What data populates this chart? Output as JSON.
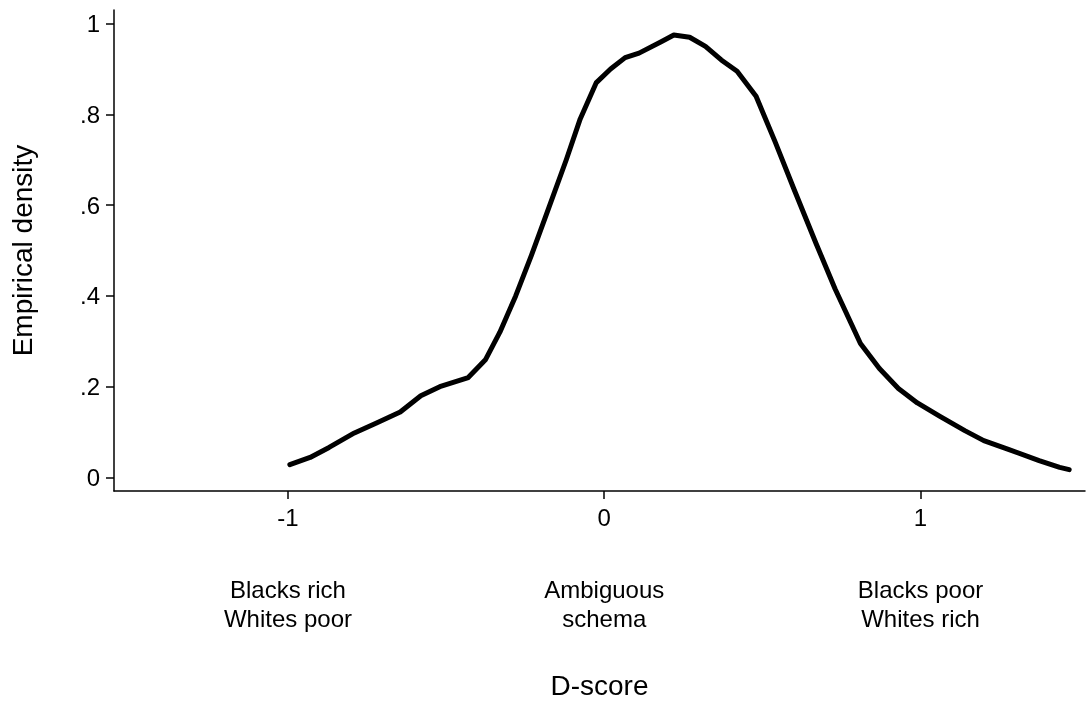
{
  "chart_data": {
    "type": "line",
    "xlabel": "D-score",
    "ylabel": "Empirical density",
    "xlim": [
      -1.55,
      1.52
    ],
    "xticks": [
      -1,
      0,
      1
    ],
    "ylim": [
      -0.03,
      1.03
    ],
    "yticks": [
      0,
      {
        "value": 0.2,
        "label": ".2"
      },
      {
        "value": 0.4,
        "label": ".4"
      },
      {
        "value": 0.6,
        "label": ".6"
      },
      {
        "value": 0.8,
        "label": ".8"
      },
      1
    ],
    "grid": false,
    "marker": "none",
    "line_style": "solid",
    "annotations": [
      "Blacks rich\nWhites poor",
      "Ambiguous\nschema",
      "Blacks poor\nWhites rich"
    ],
    "series": [
      {
        "color": "#000000",
        "x": [
          -0.994,
          -0.93,
          -0.87,
          -0.79,
          -0.72,
          -0.645,
          -0.58,
          -0.52,
          -0.43,
          -0.375,
          -0.33,
          -0.28,
          -0.23,
          -0.18,
          -0.12,
          -0.076,
          -0.025,
          0.02,
          0.066,
          0.11,
          0.18,
          0.22,
          0.27,
          0.32,
          0.37,
          0.42,
          0.48,
          0.54,
          0.6,
          0.67,
          0.73,
          0.81,
          0.87,
          0.93,
          0.99,
          1.06,
          1.14,
          1.2,
          1.28,
          1.375,
          1.44,
          1.47
        ],
        "values": [
          0.028,
          0.044,
          0.066,
          0.098,
          0.12,
          0.144,
          0.18,
          0.2,
          0.22,
          0.26,
          0.32,
          0.4,
          0.49,
          0.585,
          0.7,
          0.79,
          0.87,
          0.9,
          0.925,
          0.935,
          0.96,
          0.975,
          0.97,
          0.95,
          0.92,
          0.895,
          0.84,
          0.74,
          0.635,
          0.515,
          0.415,
          0.295,
          0.24,
          0.196,
          0.164,
          0.135,
          0.103,
          0.081,
          0.061,
          0.037,
          0.022,
          0.017
        ]
      }
    ]
  }
}
